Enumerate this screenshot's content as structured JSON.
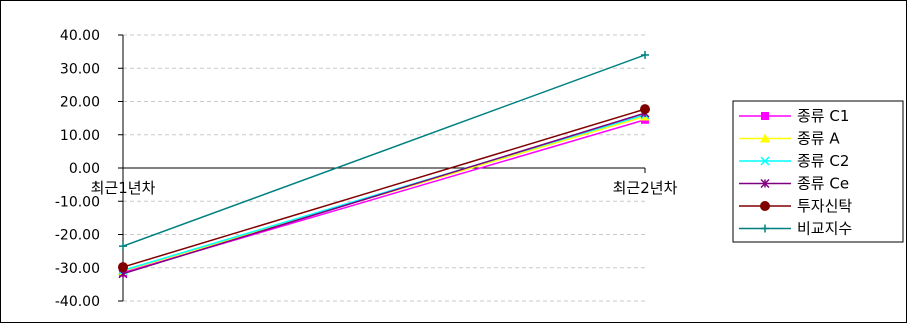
{
  "chart_data": {
    "type": "line",
    "categories": [
      "최근1년차",
      "최근2년차"
    ],
    "ylim": [
      -40,
      40
    ],
    "yticks": [
      40,
      30,
      20,
      10,
      0,
      -10,
      -20,
      -30,
      -40
    ],
    "ytick_labels": [
      "40.00",
      "30.00",
      "20.00",
      "10.00",
      "0.00",
      "-10.00",
      "-20.00",
      "-30.00",
      "-40.00"
    ],
    "grid": true,
    "legend_position": "right",
    "series": [
      {
        "name": "종류 C1",
        "values": [
          -31.5,
          14.5
        ],
        "color": "#ff00ff",
        "marker": "square"
      },
      {
        "name": "종류 A",
        "values": [
          -31.0,
          15.5
        ],
        "color": "#ffff00",
        "marker": "triangle"
      },
      {
        "name": "종류 C2",
        "values": [
          -30.8,
          16.0
        ],
        "color": "#00ffff",
        "marker": "x"
      },
      {
        "name": "종류 Ce",
        "values": [
          -31.8,
          16.5
        ],
        "color": "#800080",
        "marker": "star"
      },
      {
        "name": "투자신탁",
        "values": [
          -29.8,
          17.7
        ],
        "color": "#800000",
        "marker": "circle"
      },
      {
        "name": "비교지수",
        "values": [
          -23.5,
          34.0
        ],
        "color": "#008080",
        "marker": "plus"
      }
    ]
  }
}
